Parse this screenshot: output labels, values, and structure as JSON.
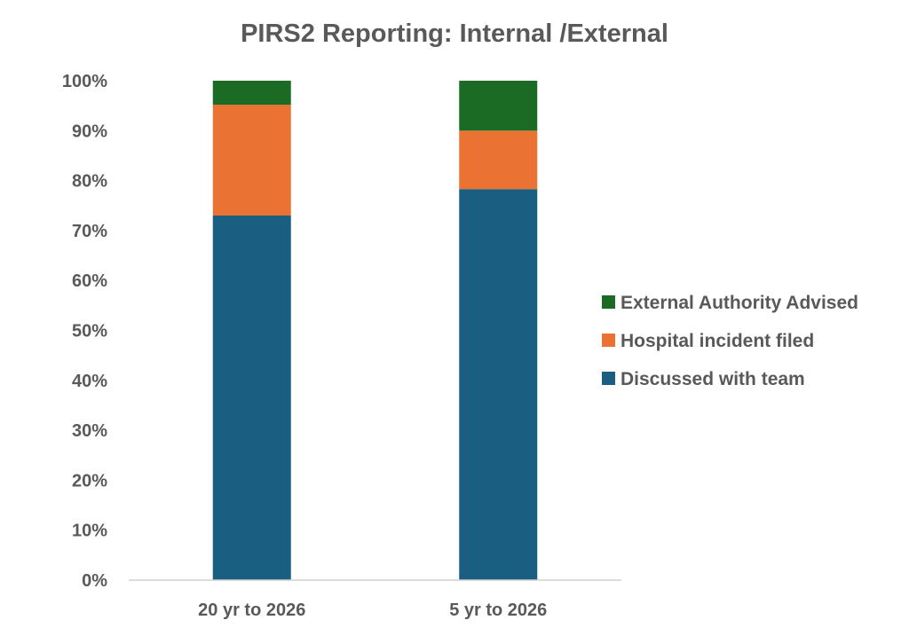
{
  "chart_data": {
    "type": "bar",
    "stacked": true,
    "title": "PIRS2 Reporting: Internal /External",
    "xlabel": "",
    "ylabel": "",
    "ylim": [
      0,
      100
    ],
    "yticks": [
      "0%",
      "10%",
      "20%",
      "30%",
      "40%",
      "50%",
      "60%",
      "70%",
      "80%",
      "90%",
      "100%"
    ],
    "categories": [
      "20 yr to 2026",
      "5 yr to 2026"
    ],
    "series": [
      {
        "name": "Discussed with team",
        "values": [
          73,
          78.3
        ],
        "color": "#1a5f82"
      },
      {
        "name": "Hospital incident filed",
        "values": [
          22.2,
          11.7
        ],
        "color": "#ea7333"
      },
      {
        "name": "External  Authority Advised",
        "values": [
          4.8,
          10
        ],
        "color": "#1c6b25"
      }
    ],
    "legend_position": "right",
    "legend_order": [
      2,
      1,
      0
    ],
    "grid": false
  }
}
